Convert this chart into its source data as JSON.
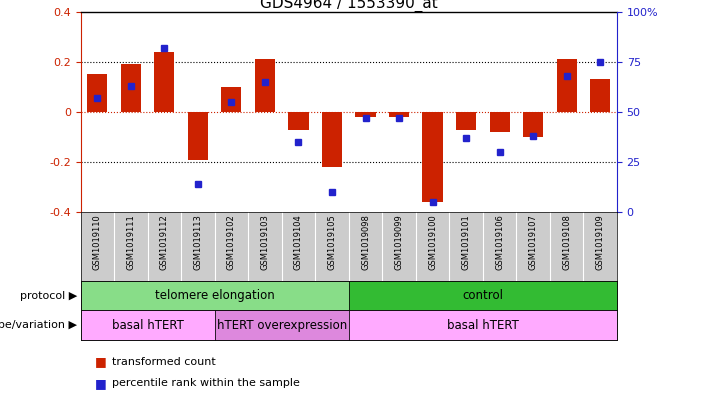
{
  "title": "GDS4964 / 1553390_at",
  "samples": [
    "GSM1019110",
    "GSM1019111",
    "GSM1019112",
    "GSM1019113",
    "GSM1019102",
    "GSM1019103",
    "GSM1019104",
    "GSM1019105",
    "GSM1019098",
    "GSM1019099",
    "GSM1019100",
    "GSM1019101",
    "GSM1019106",
    "GSM1019107",
    "GSM1019108",
    "GSM1019109"
  ],
  "bar_values": [
    0.15,
    0.19,
    0.24,
    -0.19,
    0.1,
    0.21,
    -0.07,
    -0.22,
    -0.02,
    -0.02,
    -0.36,
    -0.07,
    -0.08,
    -0.1,
    0.21,
    0.13
  ],
  "dot_pct": [
    57,
    63,
    82,
    14,
    55,
    65,
    35,
    10,
    47,
    47,
    5,
    37,
    30,
    38,
    68,
    75
  ],
  "ylim": [
    -0.4,
    0.4
  ],
  "yticks_left": [
    -0.4,
    -0.2,
    0.0,
    0.2,
    0.4
  ],
  "yticks_right": [
    0,
    25,
    50,
    75,
    100
  ],
  "ytick_right_labels": [
    "0",
    "25",
    "50",
    "75",
    "100%"
  ],
  "bar_color": "#CC2200",
  "dot_color": "#2222CC",
  "protocol_groups": [
    {
      "label": "telomere elongation",
      "start": 0,
      "end": 8,
      "color": "#88DD88"
    },
    {
      "label": "control",
      "start": 8,
      "end": 16,
      "color": "#33BB33"
    }
  ],
  "genotype_groups": [
    {
      "label": "basal hTERT",
      "start": 0,
      "end": 4,
      "color": "#FFAAFF"
    },
    {
      "label": "hTERT overexpression",
      "start": 4,
      "end": 8,
      "color": "#DD88DD"
    },
    {
      "label": "basal hTERT",
      "start": 8,
      "end": 16,
      "color": "#FFAAFF"
    }
  ],
  "protocol_label": "protocol",
  "genotype_label": "genotype/variation",
  "legend_bar_label": "transformed count",
  "legend_dot_label": "percentile rank within the sample",
  "tick_bg_color": "#CCCCCC",
  "title_fontsize": 11
}
